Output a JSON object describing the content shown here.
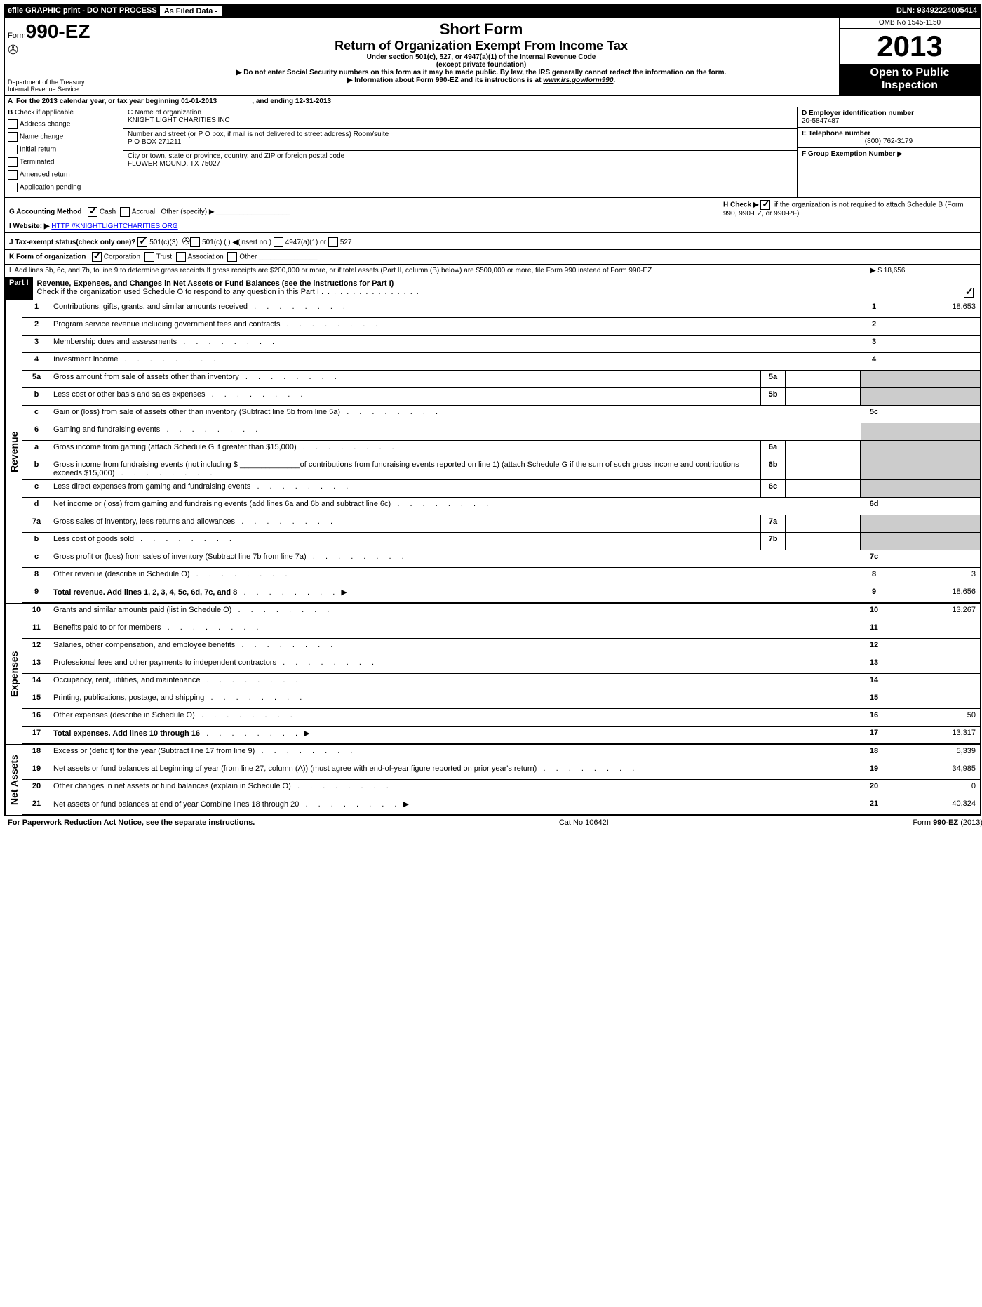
{
  "topbar": {
    "efile": "efile GRAPHIC print - DO NOT PROCESS",
    "asfiled": "As Filed Data -",
    "dln": "DLN: 93492224005414"
  },
  "header": {
    "form_label": "Form",
    "form_num": "990-EZ",
    "dept": "Department of the Treasury",
    "irs": "Internal Revenue Service",
    "title1": "Short Form",
    "title2": "Return of Organization Exempt From Income Tax",
    "sub1": "Under section 501(c), 527, or 4947(a)(1) of the Internal Revenue Code",
    "sub2": "(except private foundation)",
    "sub3": "▶ Do not enter Social Security numbers on this form as it may be made public. By law, the IRS generally cannot redact the information on the form.",
    "sub4": "▶ Information about Form 990-EZ and its instructions is at ",
    "sub4_link": "www.irs.gov/form990",
    "omb": "OMB No 1545-1150",
    "year": "2013",
    "open": "Open to Public Inspection"
  },
  "rowA": {
    "label": "A",
    "text1": "For the 2013 calendar year, or tax year beginning 01-01-2013",
    "text2": ", and ending 12-31-2013"
  },
  "B": {
    "label": "B",
    "check_if": "Check if applicable",
    "items": [
      "Address change",
      "Name change",
      "Initial return",
      "Terminated",
      "Amended return",
      "Application pending"
    ]
  },
  "C": {
    "label_name": "C Name of organization",
    "name": "KNIGHT LIGHT CHARITIES INC",
    "label_addr": "Number and street (or P O box, if mail is not delivered to street address) Room/suite",
    "addr": "P O BOX 271211",
    "label_city": "City or town, state or province, country, and ZIP or foreign postal code",
    "city": "FLOWER MOUND, TX  75027"
  },
  "D": {
    "label": "D Employer identification number",
    "value": "20-5847487",
    "E_label": "E Telephone number",
    "E_value": "(800) 762-3179",
    "F_label": "F Group Exemption Number",
    "F_arrow": "▶"
  },
  "meta": {
    "G": "G Accounting Method",
    "G_cash": "Cash",
    "G_accrual": "Accrual",
    "G_other": "Other (specify) ▶",
    "H": "H  Check ▶",
    "H_text": "if the organization is not required to attach Schedule B (Form 990, 990-EZ, or 990-PF)",
    "I": "I Website: ▶",
    "I_link": "HTTP //KNIGHTLIGHTCHARITIES ORG",
    "J": "J Tax-exempt status(check only one)?",
    "J_501c3": "501(c)(3)",
    "J_501c": "501(c) (   ) ◀(insert no )",
    "J_4947": "4947(a)(1) or",
    "J_527": "527",
    "K": "K Form of organization",
    "K_corp": "Corporation",
    "K_trust": "Trust",
    "K_assoc": "Association",
    "K_other": "Other",
    "L": "L Add lines 5b, 6c, and 7b, to line 9 to determine gross receipts  If gross receipts are $200,000 or more, or if total assets (Part II, column (B) below) are $500,000 or more, file Form 990 instead of Form 990-EZ",
    "L_val": "▶ $ 18,656"
  },
  "part1": {
    "label": "Part I",
    "title": "Revenue, Expenses, and Changes in Net Assets or Fund Balances (see the instructions for Part I)",
    "check": "Check if the organization used Schedule O to respond to any question in this Part I"
  },
  "lines": [
    {
      "n": "1",
      "d": "Contributions, gifts, grants, and similar amounts received",
      "bn": "1",
      "bv": "18,653"
    },
    {
      "n": "2",
      "d": "Program service revenue including government fees and contracts",
      "bn": "2",
      "bv": ""
    },
    {
      "n": "3",
      "d": "Membership dues and assessments",
      "bn": "3",
      "bv": ""
    },
    {
      "n": "4",
      "d": "Investment income",
      "bn": "4",
      "bv": ""
    },
    {
      "n": "5a",
      "d": "Gross amount from sale of assets other than inventory",
      "sn": "5a",
      "sv": "",
      "shade": true
    },
    {
      "n": "b",
      "d": "Less  cost or other basis and sales expenses",
      "sn": "5b",
      "sv": "",
      "shade": true
    },
    {
      "n": "c",
      "d": "Gain or (loss) from sale of assets other than inventory (Subtract line 5b from line 5a)",
      "bn": "5c",
      "bv": ""
    },
    {
      "n": "6",
      "d": "Gaming and fundraising events",
      "shade": true,
      "noline": true
    },
    {
      "n": "a",
      "d": "Gross income from gaming (attach Schedule G if greater than $15,000)",
      "sn": "6a",
      "sv": "",
      "shade": true
    },
    {
      "n": "b",
      "d": "Gross income from fundraising events (not including $ ______________of contributions from fundraising events reported on line 1) (attach Schedule G if the sum of such gross income and contributions exceeds $15,000)",
      "sn": "6b",
      "sv": "",
      "shade": true
    },
    {
      "n": "c",
      "d": "Less  direct expenses from gaming and fundraising events",
      "sn": "6c",
      "sv": "",
      "shade": true
    },
    {
      "n": "d",
      "d": "Net income or (loss) from gaming and fundraising events (add lines 6a and 6b and subtract line 6c)",
      "bn": "6d",
      "bv": ""
    },
    {
      "n": "7a",
      "d": "Gross sales of inventory, less returns and allowances",
      "sn": "7a",
      "sv": "",
      "shade": true
    },
    {
      "n": "b",
      "d": "Less  cost of goods sold",
      "sn": "7b",
      "sv": "",
      "shade": true
    },
    {
      "n": "c",
      "d": "Gross profit or (loss) from sales of inventory (Subtract line 7b from line 7a)",
      "bn": "7c",
      "bv": ""
    },
    {
      "n": "8",
      "d": "Other revenue (describe in Schedule O)",
      "bn": "8",
      "bv": "3"
    },
    {
      "n": "9",
      "d": "Total revenue. Add lines 1, 2, 3, 4, 5c, 6d, 7c, and 8",
      "bn": "9",
      "bv": "18,656",
      "arrow": true,
      "bold": true
    }
  ],
  "exp_lines": [
    {
      "n": "10",
      "d": "Grants and similar amounts paid (list in Schedule O)",
      "bn": "10",
      "bv": "13,267"
    },
    {
      "n": "11",
      "d": "Benefits paid to or for members",
      "bn": "11",
      "bv": ""
    },
    {
      "n": "12",
      "d": "Salaries, other compensation, and employee benefits",
      "bn": "12",
      "bv": ""
    },
    {
      "n": "13",
      "d": "Professional fees and other payments to independent contractors",
      "bn": "13",
      "bv": ""
    },
    {
      "n": "14",
      "d": "Occupancy, rent, utilities, and maintenance",
      "bn": "14",
      "bv": ""
    },
    {
      "n": "15",
      "d": "Printing, publications, postage, and shipping",
      "bn": "15",
      "bv": ""
    },
    {
      "n": "16",
      "d": "Other expenses (describe in Schedule O)",
      "bn": "16",
      "bv": "50"
    },
    {
      "n": "17",
      "d": "Total expenses. Add lines 10 through 16",
      "bn": "17",
      "bv": "13,317",
      "arrow": true,
      "bold": true
    }
  ],
  "net_lines": [
    {
      "n": "18",
      "d": "Excess or (deficit) for the year (Subtract line 17 from line 9)",
      "bn": "18",
      "bv": "5,339"
    },
    {
      "n": "19",
      "d": "Net assets or fund balances at beginning of year (from line 27, column (A)) (must agree with end-of-year figure reported on prior year's return)",
      "bn": "19",
      "bv": "34,985"
    },
    {
      "n": "20",
      "d": "Other changes in net assets or fund balances (explain in Schedule O)",
      "bn": "20",
      "bv": "0"
    },
    {
      "n": "21",
      "d": "Net assets or fund balances at end of year  Combine lines 18 through 20",
      "bn": "21",
      "bv": "40,324",
      "arrow": true
    }
  ],
  "footer": {
    "left": "For Paperwork Reduction Act Notice, see the separate instructions.",
    "mid": "Cat No 10642I",
    "right": "Form 990-EZ (2013)"
  },
  "side_labels": {
    "revenue": "Revenue",
    "expenses": "Expenses",
    "netassets": "Net Assets"
  }
}
